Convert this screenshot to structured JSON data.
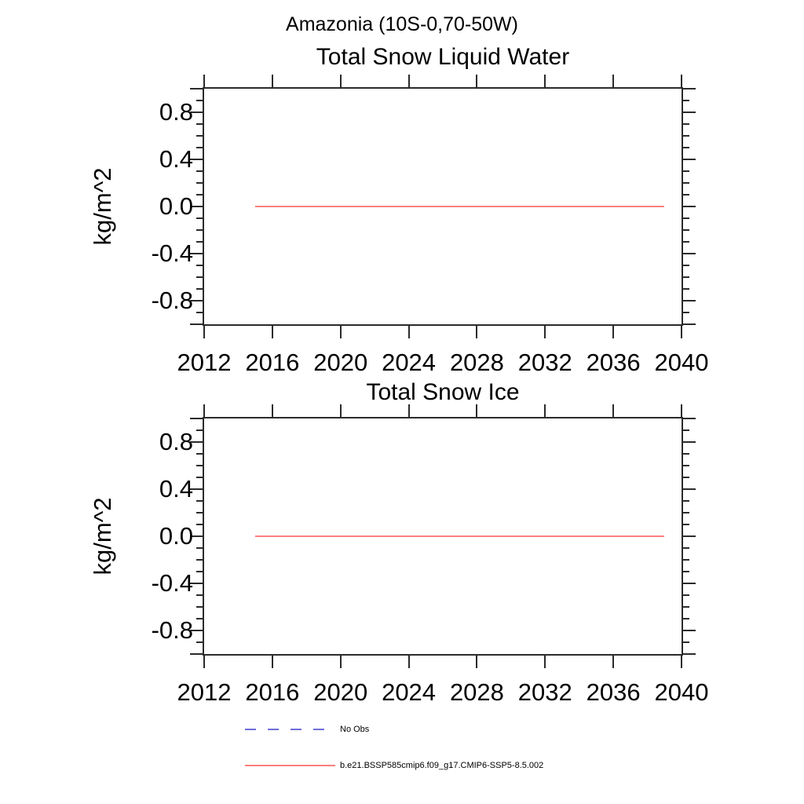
{
  "page_title": "Amazonia (10S-0,70-50W)",
  "colors": {
    "axis": "#2b2b2b",
    "text": "#000000",
    "model_line": "#f88181",
    "no_obs_line": "#6e6edc"
  },
  "charts": [
    {
      "title": "Total Snow Liquid Water",
      "ylabel": "kg/m^2"
    },
    {
      "title": "Total Snow Ice",
      "ylabel": "kg/m^2"
    }
  ],
  "legend": {
    "items": [
      {
        "label": "No Obs",
        "color": "#6e6edc",
        "style": "dashed"
      },
      {
        "label": "b.e21.BSSP585cmip6.f09_g17.CMIP6-SSP5-8.5.002",
        "color": "#f88181",
        "style": "solid"
      }
    ]
  },
  "chart_data": [
    {
      "type": "line",
      "title": "Total Snow Liquid Water",
      "xlabel": "",
      "ylabel": "kg/m^2",
      "xlim": [
        2012,
        2040
      ],
      "ylim": [
        -1.0,
        1.0
      ],
      "x_tick_step": 4,
      "x_tick_labels": [
        "2012",
        "2016",
        "2020",
        "2024",
        "2028",
        "2032",
        "2036",
        "2040"
      ],
      "y_major_tick_step": 0.4,
      "y_minor_tick_step": 0.1,
      "y_tick_labels": [
        "0.8",
        "0.4",
        "0.0",
        "-0.4",
        "-0.8"
      ],
      "grid": false,
      "legend_position": "below-figure",
      "series": [
        {
          "name": "b.e21.BSSP585cmip6.f09_g17.CMIP6-SSP5-8.5.002",
          "color": "#f88181",
          "x": [
            2015,
            2039
          ],
          "y": [
            0.0,
            0.0
          ]
        }
      ]
    },
    {
      "type": "line",
      "title": "Total Snow Ice",
      "xlabel": "",
      "ylabel": "kg/m^2",
      "xlim": [
        2012,
        2040
      ],
      "ylim": [
        -1.0,
        1.0
      ],
      "x_tick_step": 4,
      "x_tick_labels": [
        "2012",
        "2016",
        "2020",
        "2024",
        "2028",
        "2032",
        "2036",
        "2040"
      ],
      "y_major_tick_step": 0.4,
      "y_minor_tick_step": 0.1,
      "y_tick_labels": [
        "0.8",
        "0.4",
        "0.0",
        "-0.4",
        "-0.8"
      ],
      "grid": false,
      "legend_position": "below-figure",
      "series": [
        {
          "name": "b.e21.BSSP585cmip6.f09_g17.CMIP6-SSP5-8.5.002",
          "color": "#f88181",
          "x": [
            2015,
            2039
          ],
          "y": [
            0.0,
            0.0
          ]
        }
      ]
    }
  ]
}
